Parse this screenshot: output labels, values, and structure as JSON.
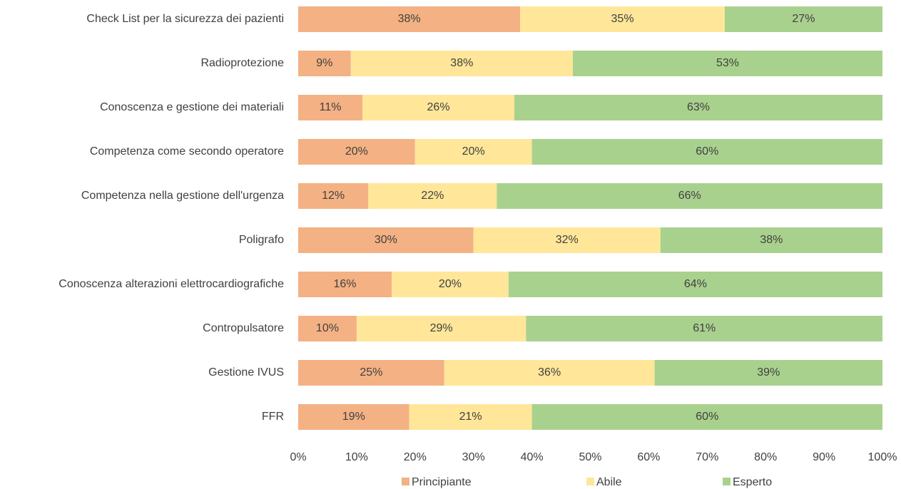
{
  "chart_data": {
    "type": "stacked-barh",
    "categories": [
      "Check List per la sicurezza dei pazienti",
      "Radioprotezione",
      "Conoscenza e gestione dei materiali",
      "Competenza come secondo operatore",
      "Competenza nella gestione dell'urgenza",
      "Poligrafo",
      "Conoscenza alterazioni elettrocardiografiche",
      "Contropulsatore",
      "Gestione IVUS",
      "FFR"
    ],
    "series": [
      {
        "name": "Principiante",
        "color": "#f4b183",
        "values": [
          38,
          9,
          11,
          20,
          12,
          30,
          16,
          10,
          25,
          19
        ],
        "value_labels": [
          "38%",
          "9%",
          "11%",
          "20%",
          "12%",
          "30%",
          "16%",
          "10%",
          "25%",
          "19%"
        ]
      },
      {
        "name": "Abile",
        "color": "#ffe699",
        "values": [
          35,
          38,
          26,
          20,
          22,
          32,
          20,
          29,
          36,
          21
        ],
        "value_labels": [
          "35%",
          "38%",
          "26%",
          "20%",
          "22%",
          "32%",
          "20%",
          "29%",
          "36%",
          "21%"
        ]
      },
      {
        "name": "Esperto",
        "color": "#a9d18e",
        "values": [
          27,
          53,
          63,
          60,
          66,
          38,
          64,
          61,
          39,
          60
        ],
        "value_labels": [
          "27%",
          "53%",
          "63%",
          "60%",
          "66%",
          "38%",
          "64%",
          "61%",
          "39%",
          "60%"
        ]
      }
    ],
    "xlim": [
      0,
      100
    ],
    "xticks": [
      {
        "value": 0,
        "label": "0%"
      },
      {
        "value": 10,
        "label": "10%"
      },
      {
        "value": 20,
        "label": "20%"
      },
      {
        "value": 30,
        "label": "30%"
      },
      {
        "value": 40,
        "label": "40%"
      },
      {
        "value": 50,
        "label": "50%"
      },
      {
        "value": 60,
        "label": "60%"
      },
      {
        "value": 70,
        "label": "70%"
      },
      {
        "value": 80,
        "label": "80%"
      },
      {
        "value": 90,
        "label": "90%"
      },
      {
        "value": 100,
        "label": "100%"
      }
    ],
    "legend": "bottom"
  }
}
